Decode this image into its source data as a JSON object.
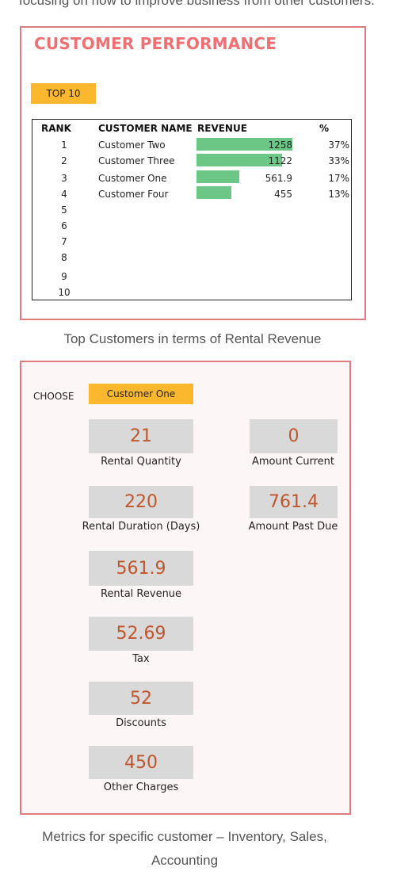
{
  "top_cut_text": "focusing on how to improve business from other customers.",
  "performance": {
    "title": "CUSTOMER PERFORMANCE",
    "top_selector": "TOP 10",
    "headers": {
      "rank": "RANK",
      "name": "CUSTOMER NAME",
      "revenue": "REVENUE",
      "pct": "%"
    },
    "rows": [
      {
        "rank": "1",
        "name": "Customer Two",
        "revenue": "1258",
        "pct": "37%",
        "revenue_value": 1258
      },
      {
        "rank": "2",
        "name": "Customer Three",
        "revenue": "1122",
        "pct": "33%",
        "revenue_value": 1122
      },
      {
        "rank": "3",
        "name": "Customer One",
        "revenue": "561.9",
        "pct": "17%",
        "revenue_value": 561.9
      },
      {
        "rank": "4",
        "name": "Customer Four",
        "revenue": "455",
        "pct": "13%",
        "revenue_value": 455
      },
      {
        "rank": "5"
      },
      {
        "rank": "6"
      },
      {
        "rank": "7"
      },
      {
        "rank": "8"
      },
      {
        "rank": "9"
      },
      {
        "rank": "10"
      }
    ],
    "bar_color": "#6cc686",
    "caption": "Top Customers in terms of Rental Revenue"
  },
  "metrics": {
    "choose_label": "CHOOSE",
    "selected_customer": "Customer One",
    "items": [
      {
        "value": "21",
        "label": "Rental Quantity"
      },
      {
        "value": "0",
        "label": "Amount Current"
      },
      {
        "value": "220",
        "label": "Rental Duration (Days)"
      },
      {
        "value": "761.4",
        "label": "Amount Past Due"
      },
      {
        "value": "561.9",
        "label": "Rental Revenue"
      },
      {
        "value": "52.69",
        "label": "Tax"
      },
      {
        "value": "52",
        "label": "Discounts"
      },
      {
        "value": "450",
        "label": "Other Charges"
      }
    ],
    "caption_line1": "Metrics for specific customer – Inventory, Sales,",
    "caption_line2": "Accounting"
  },
  "colors": {
    "accent_title": "#ef6f73",
    "border": "#e07b7f",
    "selector": "#fbb82e",
    "metric_value": "#c0562c"
  }
}
